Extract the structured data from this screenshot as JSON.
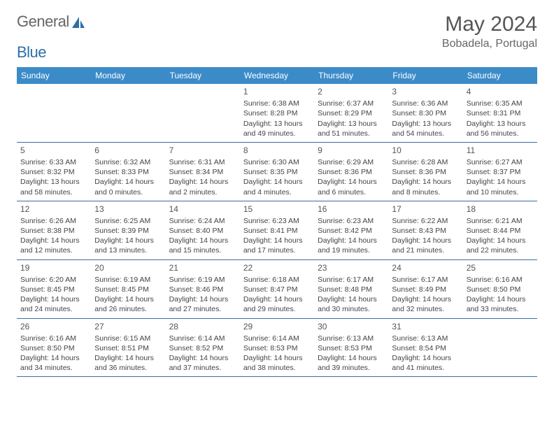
{
  "logo": {
    "text1": "General",
    "text2": "Blue"
  },
  "title": "May 2024",
  "location": "Bobadela, Portugal",
  "colors": {
    "header_bg": "#3b8bc9",
    "header_text": "#ffffff",
    "border": "#3b6da0",
    "text": "#444444",
    "title_text": "#555555",
    "logo_accent": "#2f6fa8"
  },
  "weekdays": [
    "Sunday",
    "Monday",
    "Tuesday",
    "Wednesday",
    "Thursday",
    "Friday",
    "Saturday"
  ],
  "weeks": [
    [
      null,
      null,
      null,
      {
        "n": "1",
        "sr": "6:38 AM",
        "ss": "8:28 PM",
        "dl": "13 hours and 49 minutes."
      },
      {
        "n": "2",
        "sr": "6:37 AM",
        "ss": "8:29 PM",
        "dl": "13 hours and 51 minutes."
      },
      {
        "n": "3",
        "sr": "6:36 AM",
        "ss": "8:30 PM",
        "dl": "13 hours and 54 minutes."
      },
      {
        "n": "4",
        "sr": "6:35 AM",
        "ss": "8:31 PM",
        "dl": "13 hours and 56 minutes."
      }
    ],
    [
      {
        "n": "5",
        "sr": "6:33 AM",
        "ss": "8:32 PM",
        "dl": "13 hours and 58 minutes."
      },
      {
        "n": "6",
        "sr": "6:32 AM",
        "ss": "8:33 PM",
        "dl": "14 hours and 0 minutes."
      },
      {
        "n": "7",
        "sr": "6:31 AM",
        "ss": "8:34 PM",
        "dl": "14 hours and 2 minutes."
      },
      {
        "n": "8",
        "sr": "6:30 AM",
        "ss": "8:35 PM",
        "dl": "14 hours and 4 minutes."
      },
      {
        "n": "9",
        "sr": "6:29 AM",
        "ss": "8:36 PM",
        "dl": "14 hours and 6 minutes."
      },
      {
        "n": "10",
        "sr": "6:28 AM",
        "ss": "8:36 PM",
        "dl": "14 hours and 8 minutes."
      },
      {
        "n": "11",
        "sr": "6:27 AM",
        "ss": "8:37 PM",
        "dl": "14 hours and 10 minutes."
      }
    ],
    [
      {
        "n": "12",
        "sr": "6:26 AM",
        "ss": "8:38 PM",
        "dl": "14 hours and 12 minutes."
      },
      {
        "n": "13",
        "sr": "6:25 AM",
        "ss": "8:39 PM",
        "dl": "14 hours and 13 minutes."
      },
      {
        "n": "14",
        "sr": "6:24 AM",
        "ss": "8:40 PM",
        "dl": "14 hours and 15 minutes."
      },
      {
        "n": "15",
        "sr": "6:23 AM",
        "ss": "8:41 PM",
        "dl": "14 hours and 17 minutes."
      },
      {
        "n": "16",
        "sr": "6:23 AM",
        "ss": "8:42 PM",
        "dl": "14 hours and 19 minutes."
      },
      {
        "n": "17",
        "sr": "6:22 AM",
        "ss": "8:43 PM",
        "dl": "14 hours and 21 minutes."
      },
      {
        "n": "18",
        "sr": "6:21 AM",
        "ss": "8:44 PM",
        "dl": "14 hours and 22 minutes."
      }
    ],
    [
      {
        "n": "19",
        "sr": "6:20 AM",
        "ss": "8:45 PM",
        "dl": "14 hours and 24 minutes."
      },
      {
        "n": "20",
        "sr": "6:19 AM",
        "ss": "8:45 PM",
        "dl": "14 hours and 26 minutes."
      },
      {
        "n": "21",
        "sr": "6:19 AM",
        "ss": "8:46 PM",
        "dl": "14 hours and 27 minutes."
      },
      {
        "n": "22",
        "sr": "6:18 AM",
        "ss": "8:47 PM",
        "dl": "14 hours and 29 minutes."
      },
      {
        "n": "23",
        "sr": "6:17 AM",
        "ss": "8:48 PM",
        "dl": "14 hours and 30 minutes."
      },
      {
        "n": "24",
        "sr": "6:17 AM",
        "ss": "8:49 PM",
        "dl": "14 hours and 32 minutes."
      },
      {
        "n": "25",
        "sr": "6:16 AM",
        "ss": "8:50 PM",
        "dl": "14 hours and 33 minutes."
      }
    ],
    [
      {
        "n": "26",
        "sr": "6:16 AM",
        "ss": "8:50 PM",
        "dl": "14 hours and 34 minutes."
      },
      {
        "n": "27",
        "sr": "6:15 AM",
        "ss": "8:51 PM",
        "dl": "14 hours and 36 minutes."
      },
      {
        "n": "28",
        "sr": "6:14 AM",
        "ss": "8:52 PM",
        "dl": "14 hours and 37 minutes."
      },
      {
        "n": "29",
        "sr": "6:14 AM",
        "ss": "8:53 PM",
        "dl": "14 hours and 38 minutes."
      },
      {
        "n": "30",
        "sr": "6:13 AM",
        "ss": "8:53 PM",
        "dl": "14 hours and 39 minutes."
      },
      {
        "n": "31",
        "sr": "6:13 AM",
        "ss": "8:54 PM",
        "dl": "14 hours and 41 minutes."
      },
      null
    ]
  ],
  "labels": {
    "sunrise": "Sunrise: ",
    "sunset": "Sunset: ",
    "daylight": "Daylight: "
  }
}
